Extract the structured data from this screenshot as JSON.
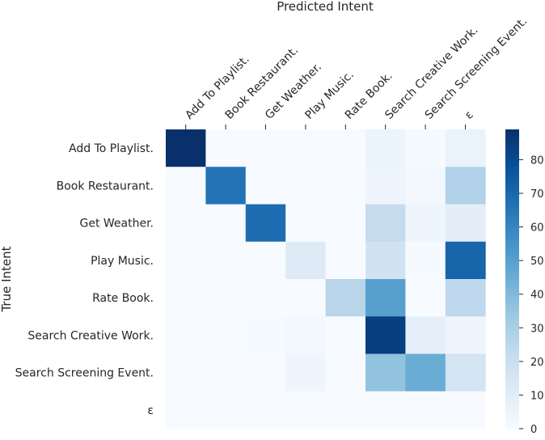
{
  "chart_data": {
    "type": "heatmap",
    "xlabel": "Predicted Intent",
    "ylabel": "True Intent",
    "x_categories": [
      "Add To Playlist.",
      "Book Restaurant.",
      "Get Weather.",
      "Play Music.",
      "Rate Book.",
      "Search Creative Work.",
      "Search Screening Event.",
      "ε"
    ],
    "y_categories": [
      "Add To Playlist.",
      "Book Restaurant.",
      "Get Weather.",
      "Play Music.",
      "Rate Book.",
      "Search Creative Work.",
      "Search Screening Event.",
      "ε"
    ],
    "values": [
      [
        89,
        0,
        0,
        0,
        0,
        5,
        1,
        6
      ],
      [
        0,
        66,
        0,
        0,
        0,
        4,
        2,
        28
      ],
      [
        0,
        0,
        68,
        0,
        0,
        22,
        4,
        9
      ],
      [
        0,
        0,
        0,
        11,
        0,
        17,
        1,
        71
      ],
      [
        0,
        0,
        0,
        0,
        26,
        50,
        0,
        24
      ],
      [
        0,
        0,
        1,
        2,
        0,
        84,
        8,
        4
      ],
      [
        0,
        0,
        0,
        4,
        0,
        36,
        45,
        16
      ],
      [
        0,
        0,
        0,
        0,
        0,
        0,
        0,
        0
      ]
    ],
    "colorbar": {
      "min": 0,
      "max": 89,
      "ticks": [
        0,
        10,
        20,
        30,
        40,
        50,
        60,
        70,
        80
      ]
    },
    "colormap": "Blues",
    "colormap_stops": [
      "#f7fbff",
      "#deebf7",
      "#c6dbef",
      "#9ecae1",
      "#6baed6",
      "#4292c6",
      "#2171b5",
      "#08519c",
      "#08306b"
    ],
    "grid": false,
    "x_axis_position": "top"
  }
}
